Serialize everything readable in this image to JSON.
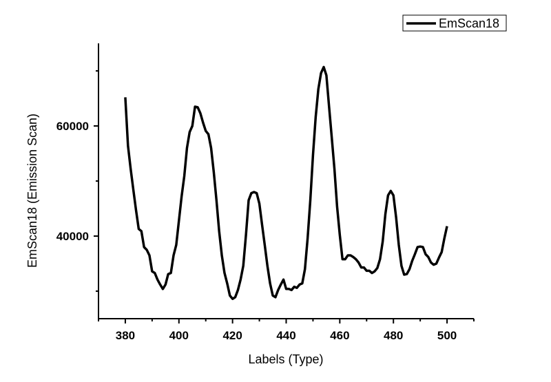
{
  "chart_data": {
    "type": "line",
    "xlabel": "Labels (Type)",
    "ylabel": "EmScan18 (Emission Scan)",
    "x": [
      380,
      381,
      382,
      383,
      384,
      385,
      386,
      387,
      388,
      389,
      390,
      391,
      392,
      393,
      394,
      395,
      396,
      397,
      398,
      399,
      400,
      401,
      402,
      403,
      404,
      405,
      406,
      407,
      408,
      409,
      410,
      411,
      412,
      413,
      414,
      415,
      416,
      417,
      418,
      419,
      420,
      421,
      422,
      423,
      424,
      425,
      426,
      427,
      428,
      429,
      430,
      431,
      432,
      433,
      434,
      435,
      436,
      437,
      438,
      439,
      440,
      441,
      442,
      443,
      444,
      445,
      446,
      447,
      448,
      449,
      450,
      451,
      452,
      453,
      454,
      455,
      456,
      457,
      458,
      459,
      460,
      461,
      462,
      463,
      464,
      465,
      466,
      467,
      468,
      469,
      470,
      471,
      472,
      473,
      474,
      475,
      476,
      477,
      478,
      479,
      480,
      481,
      482,
      483,
      484,
      485,
      486,
      487,
      488,
      489,
      490,
      491,
      492,
      493,
      494,
      495,
      496,
      497,
      498,
      499,
      500
    ],
    "series": [
      {
        "name": "EmScan18",
        "color": "#000000",
        "values": [
          65200,
          56400,
          52200,
          48400,
          44700,
          41300,
          40900,
          38000,
          37500,
          36500,
          33600,
          33300,
          32100,
          31200,
          30400,
          31200,
          33100,
          33300,
          36500,
          38400,
          42800,
          47200,
          50900,
          56000,
          58900,
          60000,
          63500,
          63400,
          62300,
          60600,
          59100,
          58500,
          56000,
          51600,
          46500,
          40900,
          36500,
          33300,
          31400,
          29200,
          28600,
          28900,
          30200,
          32100,
          34600,
          40200,
          46500,
          47800,
          48000,
          47800,
          45900,
          42100,
          38400,
          34600,
          31400,
          29200,
          28900,
          30200,
          31200,
          32100,
          30400,
          30400,
          30200,
          30800,
          30600,
          31200,
          31400,
          34000,
          39600,
          46500,
          54700,
          61600,
          66700,
          69600,
          70700,
          69200,
          63500,
          57900,
          52200,
          45300,
          40200,
          35800,
          35800,
          36500,
          36500,
          36200,
          35800,
          35200,
          34300,
          34300,
          33700,
          33700,
          33300,
          33600,
          34200,
          35800,
          39000,
          44000,
          47400,
          48200,
          47400,
          43400,
          38400,
          34600,
          33000,
          33100,
          34000,
          35500,
          36700,
          38000,
          38100,
          38000,
          36700,
          36200,
          35200,
          34800,
          35000,
          36100,
          37100,
          39600,
          41800
        ]
      }
    ],
    "xlim": [
      370,
      510
    ],
    "xticks": [
      380,
      400,
      420,
      440,
      460,
      480,
      500
    ],
    "xminorticks": [
      370,
      390,
      410,
      430,
      450,
      470,
      490,
      510
    ],
    "ylim": [
      25000,
      75000
    ],
    "yticks": [
      40000,
      60000
    ],
    "yminorticks": [
      30000,
      50000,
      70000
    ],
    "legend": "top-right",
    "grid": false
  }
}
